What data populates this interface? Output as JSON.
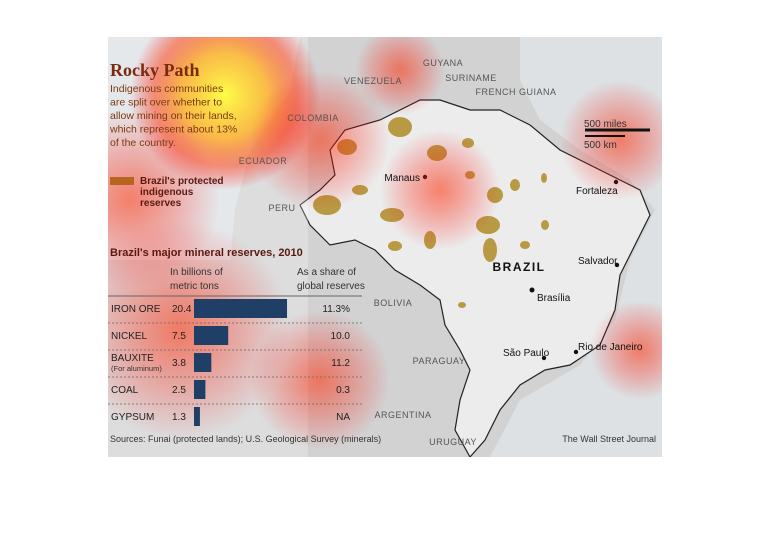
{
  "header": {
    "title": "Rocky Path",
    "description": [
      "Indigenous communities",
      "are split over whether to",
      "allow mining on their lands,",
      "which represent about 13%",
      "of the country."
    ],
    "legend": [
      "Brazil's protected",
      "indigenous",
      "reserves"
    ]
  },
  "map": {
    "countries": [
      "VENEZUELA",
      "GUYANA",
      "SURINAME",
      "FRENCH GUIANA",
      "COLOMBIA",
      "ECUADOR",
      "PERU",
      "BOLIVIA",
      "PARAGUAY",
      "ARGENTINA",
      "URUGUAY",
      "BRAZIL"
    ],
    "cities": [
      "Manaus",
      "Fortaleza",
      "Salvador",
      "Brasília",
      "São Paulo",
      "Rio de Janeiro"
    ],
    "scale": [
      "500 miles",
      "500 km"
    ]
  },
  "table": {
    "title": "Brazil's major mineral reserves, 2010",
    "value_header": [
      "In billions of",
      "metric tons"
    ],
    "share_header": [
      "As a share of",
      "global reserves"
    ],
    "rows": [
      {
        "mineral": "IRON ORE",
        "value": 20.4,
        "share": "11.3%"
      },
      {
        "mineral": "NICKEL",
        "value": 7.5,
        "share": "10.0"
      },
      {
        "mineral": "BAUXITE",
        "note": "(For aluminum)",
        "value": 3.8,
        "share": "11.2"
      },
      {
        "mineral": "COAL",
        "value": 2.5,
        "share": "0.3"
      },
      {
        "mineral": "GYPSUM",
        "value": 1.3,
        "share": "NA"
      }
    ]
  },
  "footer": {
    "sources": "Sources: Funai (protected lands); U.S. Geological Survey (minerals)",
    "credit": "The Wall Street Journal"
  }
}
